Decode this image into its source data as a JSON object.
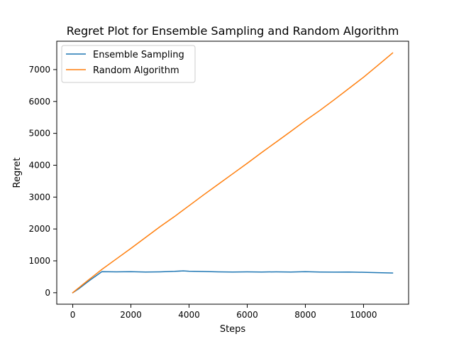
{
  "chart_data": {
    "type": "line",
    "title": "Regret Plot for Ensemble Sampling and Random Algorithm",
    "xlabel": "Steps",
    "ylabel": "Regret",
    "xlim": [
      -550,
      11550
    ],
    "ylim": [
      -360,
      7890
    ],
    "xticks": [
      0,
      2000,
      4000,
      6000,
      8000,
      10000
    ],
    "yticks": [
      0,
      1000,
      2000,
      3000,
      4000,
      5000,
      6000,
      7000
    ],
    "grid": false,
    "legend_position": "top-left",
    "series": [
      {
        "name": "Ensemble Sampling",
        "color": "#1f77b4",
        "x": [
          0,
          200,
          400,
          600,
          800,
          1000,
          1500,
          2000,
          2500,
          3000,
          3500,
          3800,
          4000,
          4500,
          5000,
          5500,
          6000,
          6500,
          7000,
          7500,
          8000,
          8500,
          9000,
          9500,
          10000,
          10500,
          11000
        ],
        "y": [
          0,
          120,
          260,
          400,
          530,
          660,
          655,
          660,
          650,
          655,
          670,
          685,
          675,
          665,
          655,
          650,
          655,
          650,
          655,
          650,
          660,
          650,
          645,
          650,
          640,
          630,
          620
        ]
      },
      {
        "name": "Random Algorithm",
        "color": "#ff7f0e",
        "x": [
          0,
          500,
          1000,
          1500,
          2000,
          2500,
          3000,
          3500,
          4000,
          4500,
          5000,
          5500,
          6000,
          6500,
          7000,
          7500,
          8000,
          8500,
          9000,
          9500,
          10000,
          10500,
          11000
        ],
        "y": [
          0,
          370,
          730,
          1060,
          1390,
          1730,
          2070,
          2390,
          2730,
          3070,
          3400,
          3730,
          4060,
          4400,
          4730,
          5060,
          5400,
          5720,
          6060,
          6410,
          6760,
          7140,
          7520
        ]
      }
    ]
  }
}
